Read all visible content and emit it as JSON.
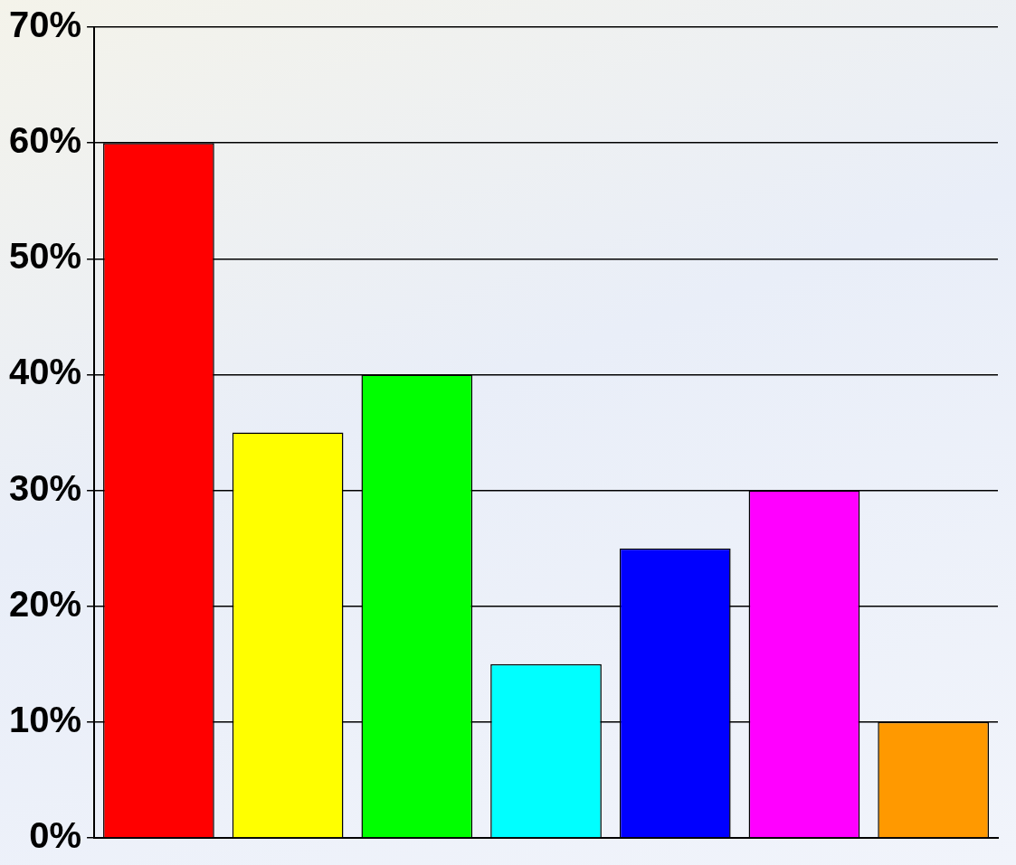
{
  "chart_data": {
    "type": "bar",
    "categories": [
      null,
      null,
      null,
      null,
      null,
      null,
      null
    ],
    "values": [
      60,
      35,
      40,
      15,
      25,
      30,
      10
    ],
    "colors": [
      "#ff0000",
      "#ffff00",
      "#00ff00",
      "#00ffff",
      "#0000ff",
      "#ff00ff",
      "#ff9900"
    ],
    "ylim": [
      0,
      70
    ],
    "yticks": [
      {
        "value": 0,
        "label": "0%"
      },
      {
        "value": 10,
        "label": "10%"
      },
      {
        "value": 20,
        "label": "20%"
      },
      {
        "value": 30,
        "label": "30%"
      },
      {
        "value": 40,
        "label": "40%"
      },
      {
        "value": 50,
        "label": "50%"
      },
      {
        "value": 60,
        "label": "60%"
      },
      {
        "value": 70,
        "label": "70%"
      }
    ],
    "grid": true,
    "tick_labels": "y"
  }
}
